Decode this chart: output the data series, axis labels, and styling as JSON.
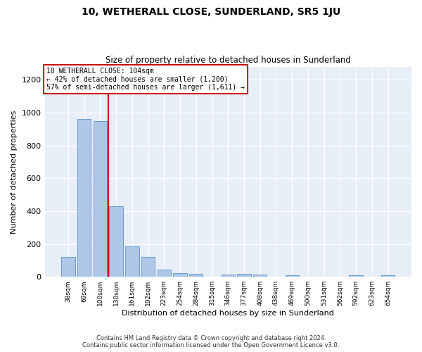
{
  "title": "10, WETHERALL CLOSE, SUNDERLAND, SR5 1JU",
  "subtitle": "Size of property relative to detached houses in Sunderland",
  "xlabel": "Distribution of detached houses by size in Sunderland",
  "ylabel": "Number of detached properties",
  "footer_line1": "Contains HM Land Registry data © Crown copyright and database right 2024.",
  "footer_line2": "Contains public sector information licensed under the Open Government Licence v3.0.",
  "annotation_line1": "10 WETHERALL CLOSE: 104sqm",
  "annotation_line2": "← 42% of detached houses are smaller (1,200)",
  "annotation_line3": "57% of semi-detached houses are larger (1,611) →",
  "bar_color": "#aec6e8",
  "bar_edge_color": "#5b8fc9",
  "redline_color": "#cc0000",
  "background_color": "#e8eef8",
  "categories": [
    "38sqm",
    "69sqm",
    "100sqm",
    "130sqm",
    "161sqm",
    "192sqm",
    "223sqm",
    "254sqm",
    "284sqm",
    "315sqm",
    "346sqm",
    "377sqm",
    "408sqm",
    "438sqm",
    "469sqm",
    "500sqm",
    "531sqm",
    "562sqm",
    "592sqm",
    "623sqm",
    "654sqm"
  ],
  "values": [
    120,
    960,
    950,
    430,
    185,
    120,
    45,
    22,
    20,
    0,
    15,
    17,
    12,
    0,
    10,
    0,
    0,
    0,
    10,
    0,
    8
  ],
  "ylim": [
    0,
    1280
  ],
  "yticks": [
    0,
    200,
    400,
    600,
    800,
    1000,
    1200
  ],
  "redline_x": 2.5,
  "figsize": [
    6.0,
    5.0
  ],
  "dpi": 100
}
